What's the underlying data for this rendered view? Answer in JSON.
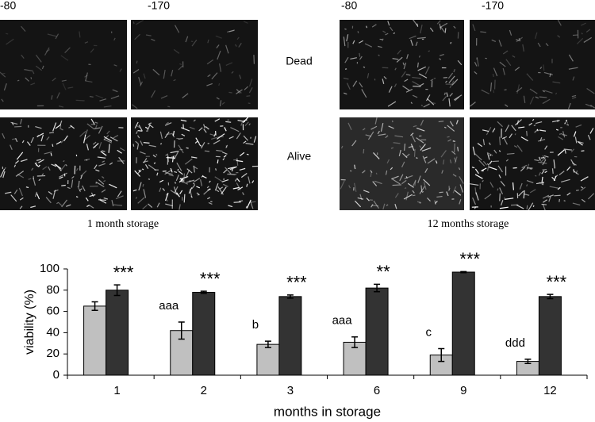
{
  "panels": [
    {
      "caption": "1 month storage",
      "columns": [
        "-80",
        "-170"
      ]
    },
    {
      "caption": "12 months storage",
      "columns": [
        "-80",
        "-170"
      ]
    }
  ],
  "row_labels": [
    "Dead",
    "Alive"
  ],
  "chart_data": {
    "type": "bar",
    "xlabel": "months in storage",
    "ylabel": "viability (%)",
    "categories": [
      "1",
      "2",
      "3",
      "6",
      "9",
      "12"
    ],
    "series": [
      {
        "color": "#c0c0c0",
        "values": [
          65,
          42,
          29,
          31,
          19,
          13
        ],
        "errors": [
          4,
          8,
          3,
          5,
          6,
          2
        ],
        "annotations": [
          null,
          "aaa",
          "b",
          "aaa",
          "c",
          "ddd"
        ]
      },
      {
        "color": "#333333",
        "values": [
          80,
          78,
          74,
          82,
          97,
          74
        ],
        "errors": [
          5,
          1,
          1.5,
          3.5,
          0.5,
          2
        ],
        "annotations": [
          "***",
          "***",
          "***",
          "**",
          "***",
          "***"
        ]
      }
    ],
    "ylim": [
      0,
      100
    ],
    "yticks": [
      0,
      20,
      40,
      60,
      80,
      100
    ],
    "grid": false
  }
}
